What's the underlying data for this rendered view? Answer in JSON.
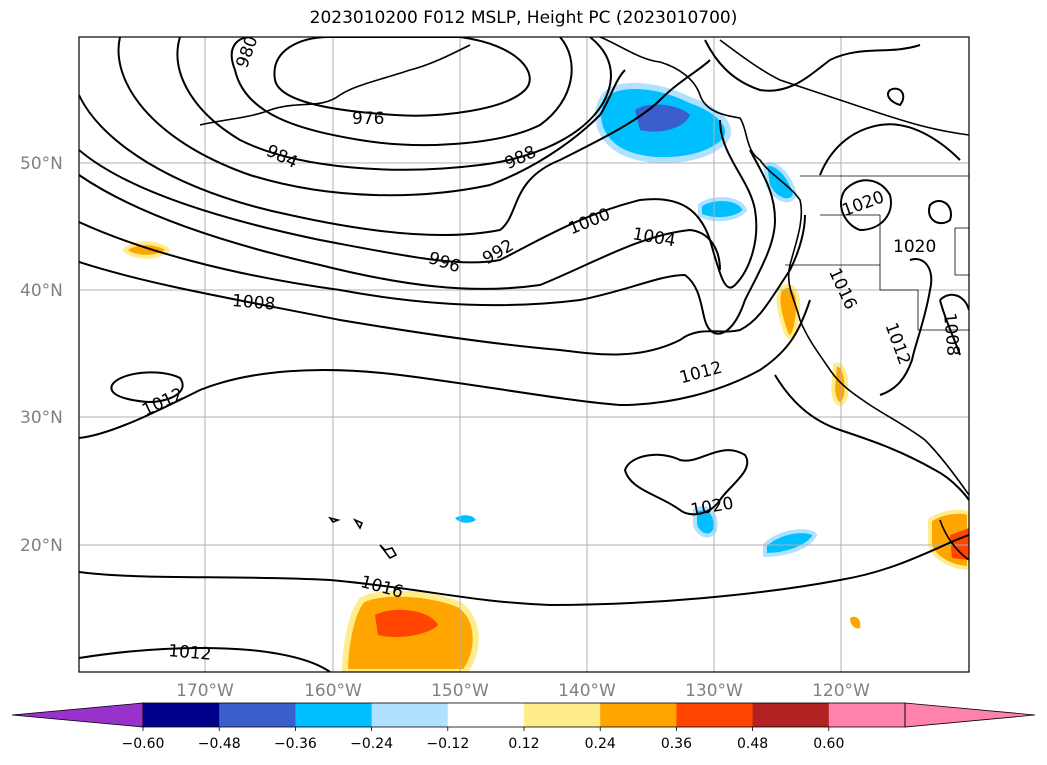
{
  "title": "2023010200 F012 MSLP, Height PC (2023010700)",
  "latitude_labels": [
    "50°N",
    "40°N",
    "30°N",
    "20°N"
  ],
  "longitude_labels": [
    "170°W",
    "160°W",
    "150°W",
    "140°W",
    "130°W",
    "120°W"
  ],
  "contour_labels": [
    {
      "text": "980"
    },
    {
      "text": "976"
    },
    {
      "text": "984"
    },
    {
      "text": "988"
    },
    {
      "text": "992"
    },
    {
      "text": "996"
    },
    {
      "text": "1000"
    },
    {
      "text": "1004"
    },
    {
      "text": "1008"
    },
    {
      "text": "1012"
    },
    {
      "text": "1012"
    },
    {
      "text": "1012"
    },
    {
      "text": "1016"
    },
    {
      "text": "1020"
    },
    {
      "text": "1016"
    },
    {
      "text": "1012"
    },
    {
      "text": "1020"
    },
    {
      "text": "1020"
    },
    {
      "text": "1008"
    }
  ],
  "colorbar": {
    "ticks": [
      "−0.60",
      "−0.48",
      "−0.36",
      "−0.24",
      "−0.12",
      "0.12",
      "0.24",
      "0.36",
      "0.48",
      "0.60"
    ],
    "colors": [
      "#9932cc",
      "#00008b",
      "#3a5fcd",
      "#00bfff",
      "#b0e2ff",
      "#ffffff",
      "#ffec8b",
      "#ffa500",
      "#ff4500",
      "#b22222",
      "#ff82ab",
      "#ff82ab"
    ]
  }
}
